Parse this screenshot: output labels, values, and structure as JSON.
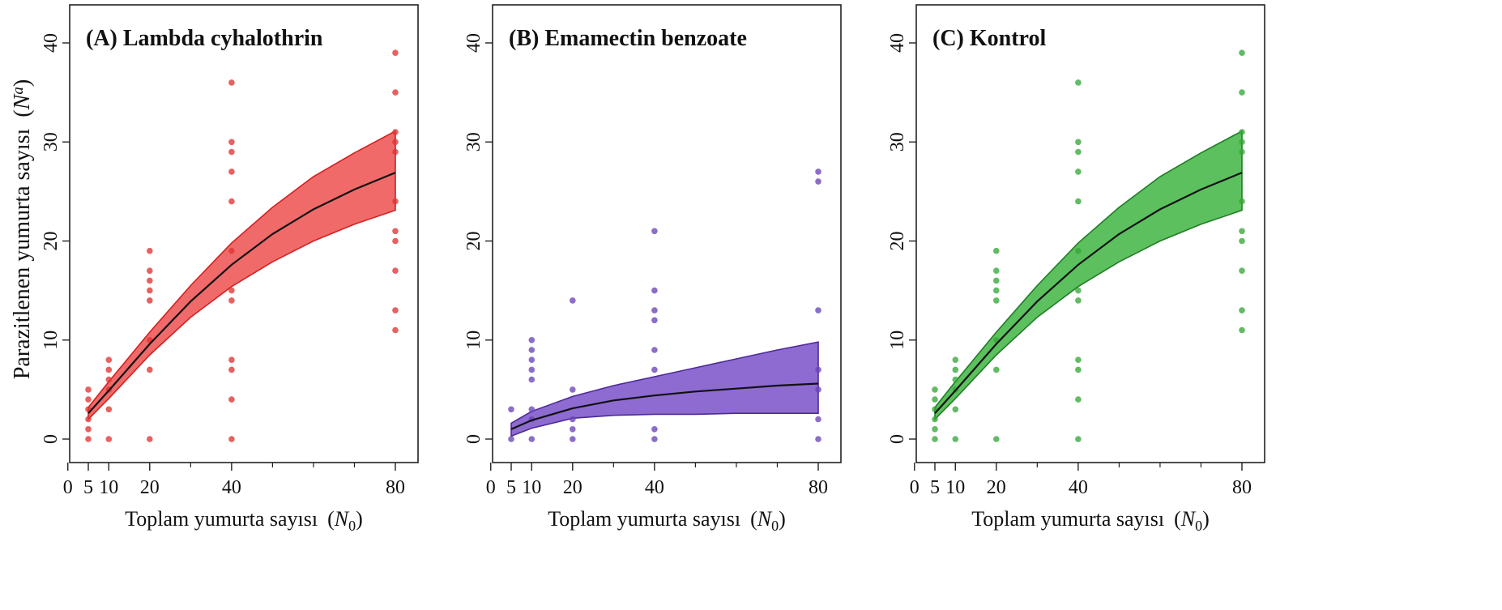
{
  "figure": {
    "ylabel": "Parazitlenen yumurta sayısı",
    "ylabel_symbol": "N",
    "ylabel_subscript": "a",
    "xlabel": "Toplam yumurta sayısı",
    "xlabel_symbol": "N",
    "xlabel_subscript": "0"
  },
  "chart_data": [
    {
      "type": "scatter",
      "title": "(A) Lambda cyhalothrin",
      "xlabel": "Toplam yumurta sayısı (N0)",
      "ylabel": "Parazitlenen yumurta sayısı (Na)",
      "xlim": [
        0,
        84
      ],
      "ylim": [
        0,
        44
      ],
      "xticks": [
        0,
        5,
        10,
        20,
        40,
        80
      ],
      "xminor": [
        30,
        50,
        60,
        70
      ],
      "yticks": [
        0,
        10,
        20,
        30,
        40
      ],
      "colors": {
        "points": "#e03535",
        "band_fill": "#f06a6a",
        "band_edge": "#d42020",
        "fit": "#111111"
      },
      "points": [
        [
          5,
          0
        ],
        [
          5,
          1
        ],
        [
          5,
          2
        ],
        [
          5,
          3
        ],
        [
          5,
          4
        ],
        [
          5,
          5
        ],
        [
          10,
          0
        ],
        [
          10,
          3
        ],
        [
          10,
          5
        ],
        [
          10,
          6
        ],
        [
          10,
          7
        ],
        [
          10,
          8
        ],
        [
          20,
          0
        ],
        [
          20,
          7
        ],
        [
          20,
          10
        ],
        [
          20,
          14
        ],
        [
          20,
          15
        ],
        [
          20,
          16
        ],
        [
          20,
          17
        ],
        [
          20,
          19
        ],
        [
          40,
          0
        ],
        [
          40,
          4
        ],
        [
          40,
          7
        ],
        [
          40,
          8
        ],
        [
          40,
          14
        ],
        [
          40,
          15
        ],
        [
          40,
          19
        ],
        [
          40,
          24
        ],
        [
          40,
          27
        ],
        [
          40,
          29
        ],
        [
          40,
          30
        ],
        [
          40,
          36
        ],
        [
          80,
          11
        ],
        [
          80,
          13
        ],
        [
          80,
          17
        ],
        [
          80,
          20
        ],
        [
          80,
          21
        ],
        [
          80,
          24
        ],
        [
          80,
          29
        ],
        [
          80,
          30
        ],
        [
          80,
          31
        ],
        [
          80,
          35
        ],
        [
          80,
          39
        ]
      ],
      "fit": {
        "x": [
          5,
          10,
          20,
          30,
          40,
          50,
          60,
          70,
          80
        ],
        "y": [
          2.6,
          4.9,
          9.6,
          13.9,
          17.6,
          20.7,
          23.2,
          25.2,
          26.9
        ]
      },
      "band": {
        "x": [
          5,
          10,
          20,
          30,
          40,
          50,
          60,
          70,
          80
        ],
        "lower": [
          2.0,
          4.1,
          8.5,
          12.3,
          15.4,
          17.9,
          20.0,
          21.7,
          23.1
        ],
        "upper": [
          3.2,
          5.8,
          10.8,
          15.5,
          19.8,
          23.4,
          26.5,
          28.9,
          31.1
        ]
      }
    },
    {
      "type": "scatter",
      "title": "(B) Emamectin benzoate",
      "xlabel": "Toplam yumurta sayısı (N0)",
      "ylabel": "",
      "xlim": [
        0,
        84
      ],
      "ylim": [
        0,
        44
      ],
      "xticks": [
        0,
        5,
        10,
        20,
        40,
        80
      ],
      "xminor": [
        30,
        50,
        60,
        70
      ],
      "yticks": [
        0,
        10,
        20,
        30,
        40
      ],
      "colors": {
        "points": "#6a45b8",
        "band_fill": "#8e6bd0",
        "band_edge": "#4e2a9a",
        "fit": "#111111"
      },
      "points": [
        [
          5,
          0
        ],
        [
          5,
          3
        ],
        [
          10,
          0
        ],
        [
          10,
          2
        ],
        [
          10,
          3
        ],
        [
          10,
          6
        ],
        [
          10,
          7
        ],
        [
          10,
          8
        ],
        [
          10,
          9
        ],
        [
          10,
          10
        ],
        [
          20,
          0
        ],
        [
          20,
          1
        ],
        [
          20,
          2
        ],
        [
          20,
          5
        ],
        [
          20,
          14
        ],
        [
          40,
          0
        ],
        [
          40,
          1
        ],
        [
          40,
          7
        ],
        [
          40,
          9
        ],
        [
          40,
          12
        ],
        [
          40,
          13
        ],
        [
          40,
          15
        ],
        [
          40,
          21
        ],
        [
          80,
          0
        ],
        [
          80,
          2
        ],
        [
          80,
          5
        ],
        [
          80,
          7
        ],
        [
          80,
          13
        ],
        [
          80,
          26
        ],
        [
          80,
          27
        ]
      ],
      "fit": {
        "x": [
          5,
          10,
          20,
          30,
          40,
          50,
          60,
          70,
          80
        ],
        "y": [
          1.0,
          1.9,
          3.1,
          3.9,
          4.4,
          4.8,
          5.1,
          5.4,
          5.6
        ]
      },
      "band": {
        "x": [
          5,
          10,
          20,
          30,
          40,
          50,
          60,
          70,
          80
        ],
        "lower": [
          0.3,
          1.1,
          2.1,
          2.4,
          2.5,
          2.5,
          2.6,
          2.6,
          2.6
        ],
        "upper": [
          1.6,
          2.8,
          4.3,
          5.4,
          6.3,
          7.2,
          8.1,
          9.0,
          9.8
        ]
      }
    },
    {
      "type": "scatter",
      "title": "(C) Kontrol",
      "xlabel": "Toplam yumurta sayısı (N0)",
      "ylabel": "",
      "xlim": [
        0,
        84
      ],
      "ylim": [
        0,
        44
      ],
      "xticks": [
        0,
        5,
        10,
        20,
        40,
        80
      ],
      "xminor": [
        30,
        50,
        60,
        70
      ],
      "yticks": [
        0,
        10,
        20,
        30,
        40
      ],
      "colors": {
        "points": "#36a83a",
        "band_fill": "#5cc05e",
        "band_edge": "#1f7d25",
        "fit": "#111111"
      },
      "points": [
        [
          5,
          0
        ],
        [
          5,
          1
        ],
        [
          5,
          2
        ],
        [
          5,
          3
        ],
        [
          5,
          4
        ],
        [
          5,
          5
        ],
        [
          10,
          0
        ],
        [
          10,
          3
        ],
        [
          10,
          5
        ],
        [
          10,
          6
        ],
        [
          10,
          7
        ],
        [
          10,
          8
        ],
        [
          20,
          0
        ],
        [
          20,
          7
        ],
        [
          20,
          10
        ],
        [
          20,
          14
        ],
        [
          20,
          15
        ],
        [
          20,
          16
        ],
        [
          20,
          17
        ],
        [
          20,
          19
        ],
        [
          40,
          0
        ],
        [
          40,
          4
        ],
        [
          40,
          7
        ],
        [
          40,
          8
        ],
        [
          40,
          14
        ],
        [
          40,
          15
        ],
        [
          40,
          19
        ],
        [
          40,
          24
        ],
        [
          40,
          27
        ],
        [
          40,
          29
        ],
        [
          40,
          30
        ],
        [
          40,
          36
        ],
        [
          80,
          11
        ],
        [
          80,
          13
        ],
        [
          80,
          17
        ],
        [
          80,
          20
        ],
        [
          80,
          21
        ],
        [
          80,
          24
        ],
        [
          80,
          29
        ],
        [
          80,
          30
        ],
        [
          80,
          31
        ],
        [
          80,
          35
        ],
        [
          80,
          39
        ]
      ],
      "fit": {
        "x": [
          5,
          10,
          20,
          30,
          40,
          50,
          60,
          70,
          80
        ],
        "y": [
          2.6,
          4.9,
          9.6,
          13.9,
          17.6,
          20.7,
          23.2,
          25.2,
          26.9
        ]
      },
      "band": {
        "x": [
          5,
          10,
          20,
          30,
          40,
          50,
          60,
          70,
          80
        ],
        "lower": [
          2.0,
          4.1,
          8.5,
          12.3,
          15.4,
          17.9,
          20.0,
          21.7,
          23.1
        ],
        "upper": [
          3.2,
          5.8,
          10.8,
          15.5,
          19.8,
          23.4,
          26.5,
          28.9,
          31.1
        ]
      }
    }
  ]
}
